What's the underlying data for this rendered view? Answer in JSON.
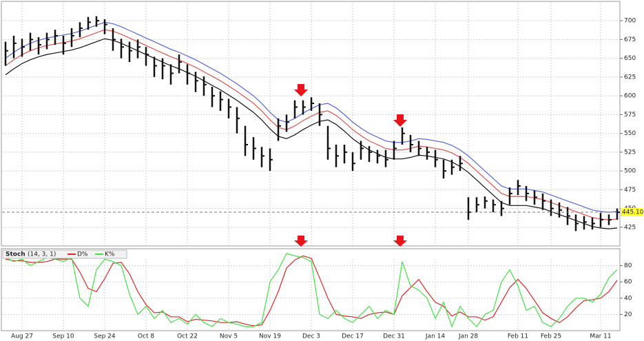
{
  "chart_data": [
    {
      "type": "ohlc",
      "high": [
        672,
        680,
        676,
        684,
        678,
        684,
        688,
        680,
        690,
        698,
        705,
        706,
        702,
        690,
        676,
        672,
        675,
        665,
        652,
        650,
        642,
        655,
        642,
        632,
        626,
        612,
        606,
        596,
        585,
        560,
        545,
        532,
        530,
        570,
        575,
        594,
        594,
        598,
        590,
        560,
        535,
        535,
        525,
        540,
        533,
        528,
        528,
        540,
        558,
        548,
        540,
        532,
        528,
        515,
        515,
        520,
        465,
        465,
        466,
        462,
        460,
        478,
        488,
        480,
        474,
        470,
        462,
        458,
        452,
        442,
        440,
        438,
        444,
        442,
        450
      ],
      "low": [
        640,
        650,
        652,
        660,
        655,
        662,
        668,
        655,
        665,
        678,
        688,
        692,
        682,
        660,
        650,
        645,
        650,
        640,
        625,
        622,
        615,
        630,
        615,
        605,
        600,
        585,
        580,
        570,
        550,
        520,
        515,
        505,
        500,
        540,
        552,
        570,
        575,
        580,
        560,
        515,
        505,
        510,
        500,
        515,
        512,
        510,
        505,
        515,
        535,
        525,
        520,
        515,
        505,
        490,
        495,
        500,
        435,
        445,
        450,
        445,
        440,
        455,
        468,
        460,
        455,
        448,
        440,
        438,
        428,
        420,
        422,
        422,
        425,
        428,
        435
      ],
      "close": [
        660,
        670,
        665,
        675,
        668,
        675,
        680,
        670,
        680,
        690,
        698,
        700,
        695,
        675,
        665,
        660,
        665,
        655,
        640,
        640,
        630,
        645,
        630,
        620,
        615,
        600,
        595,
        585,
        570,
        535,
        530,
        520,
        515,
        560,
        565,
        585,
        585,
        590,
        575,
        530,
        520,
        525,
        510,
        530,
        525,
        520,
        515,
        530,
        550,
        535,
        530,
        525,
        515,
        500,
        505,
        510,
        445,
        455,
        460,
        455,
        450,
        470,
        480,
        470,
        465,
        460,
        450,
        448,
        440,
        430,
        432,
        430,
        435,
        435,
        445
      ],
      "color": "#111111",
      "lines": [
        {
          "color": "#5566dd",
          "values": [
            650,
            658,
            665,
            670,
            674,
            677,
            679,
            681,
            683,
            686,
            690,
            694,
            698,
            696,
            692,
            687,
            682,
            677,
            672,
            667,
            662,
            658,
            653,
            648,
            642,
            636,
            630,
            623,
            616,
            608,
            600,
            590,
            578,
            568,
            565,
            570,
            577,
            583,
            588,
            590,
            584,
            575,
            565,
            557,
            550,
            545,
            540,
            538,
            538,
            540,
            543,
            542,
            540,
            538,
            534,
            528,
            520,
            510,
            500,
            490,
            480,
            476,
            476,
            476,
            474,
            472,
            468,
            464,
            460,
            456,
            452,
            448,
            446,
            445,
            446
          ]
        },
        {
          "color": "#e05050",
          "values": [
            640,
            648,
            655,
            660,
            664,
            667,
            669,
            671,
            673,
            676,
            680,
            684,
            688,
            686,
            682,
            677,
            672,
            667,
            662,
            657,
            652,
            648,
            643,
            638,
            632,
            626,
            620,
            613,
            606,
            598,
            590,
            580,
            568,
            558,
            555,
            560,
            567,
            573,
            578,
            580,
            574,
            565,
            555,
            547,
            540,
            535,
            530,
            528,
            528,
            530,
            533,
            532,
            530,
            528,
            524,
            518,
            510,
            500,
            490,
            480,
            470,
            466,
            466,
            466,
            464,
            462,
            458,
            454,
            450,
            446,
            442,
            438,
            436,
            435,
            436
          ]
        },
        {
          "color": "#111111",
          "values": [
            628,
            636,
            643,
            648,
            652,
            655,
            657,
            659,
            661,
            664,
            668,
            672,
            676,
            674,
            670,
            665,
            660,
            655,
            650,
            645,
            640,
            636,
            631,
            626,
            620,
            614,
            608,
            601,
            594,
            586,
            578,
            568,
            556,
            546,
            543,
            548,
            555,
            561,
            566,
            568,
            562,
            553,
            543,
            535,
            528,
            523,
            518,
            516,
            516,
            518,
            521,
            520,
            518,
            516,
            512,
            506,
            498,
            488,
            478,
            468,
            458,
            454,
            454,
            454,
            452,
            450,
            446,
            442,
            438,
            434,
            430,
            426,
            424,
            423,
            424
          ]
        }
      ],
      "last_price": 445.1,
      "last_price_label": "445.10",
      "ylim": [
        402,
        723
      ],
      "yticks": [
        425,
        450,
        475,
        500,
        525,
        550,
        575,
        600,
        625,
        650,
        675,
        700
      ],
      "grid": true
    },
    {
      "type": "line",
      "title": "Stoch",
      "subtitle": "(14, 3, 1)",
      "categories": [
        null,
        null,
        "Aug 27",
        null,
        null,
        null,
        null,
        "Sep 10",
        null,
        null,
        null,
        null,
        "Sep 24",
        null,
        null,
        null,
        null,
        "Oct 8",
        null,
        null,
        null,
        null,
        "Oct 22",
        null,
        null,
        null,
        null,
        "Nov 5",
        null,
        null,
        null,
        null,
        "Nov 19",
        null,
        null,
        null,
        null,
        "Dec 3",
        null,
        null,
        null,
        null,
        "Dec 17",
        null,
        null,
        null,
        null,
        "Dec 31",
        null,
        null,
        null,
        null,
        "Jan 14",
        null,
        null,
        null,
        "Jan 28",
        null,
        null,
        null,
        null,
        null,
        "Feb 11",
        null,
        null,
        null,
        "Feb 25",
        null,
        null,
        null,
        null,
        null,
        "Mar 11",
        null,
        null
      ],
      "series": [
        {
          "name": "D%",
          "color": "#d62728",
          "values": [
            88,
            86,
            86,
            84,
            84,
            85,
            88,
            88,
            88,
            72,
            52,
            48,
            64,
            83,
            84,
            70,
            48,
            32,
            22,
            23,
            17,
            17,
            11,
            14,
            13,
            12,
            10,
            10,
            11,
            8,
            6,
            7,
            25,
            48,
            77,
            87,
            92,
            89,
            65,
            40,
            20,
            18,
            17,
            15,
            20,
            22,
            23,
            20,
            43,
            53,
            63,
            48,
            35,
            30,
            18,
            23,
            17,
            17,
            13,
            17,
            35,
            53,
            63,
            52,
            37,
            22,
            15,
            10,
            17,
            28,
            37,
            38,
            40,
            48,
            62
          ]
        },
        {
          "name": "K%",
          "color": "#44dd44",
          "values": [
            90,
            85,
            88,
            80,
            85,
            90,
            88,
            85,
            90,
            40,
            30,
            75,
            88,
            85,
            80,
            45,
            20,
            30,
            15,
            25,
            10,
            15,
            8,
            20,
            10,
            5,
            15,
            10,
            8,
            5,
            5,
            10,
            60,
            75,
            95,
            92,
            90,
            85,
            20,
            15,
            25,
            15,
            10,
            20,
            30,
            15,
            25,
            20,
            85,
            55,
            50,
            40,
            15,
            35,
            5,
            30,
            15,
            5,
            20,
            25,
            60,
            75,
            55,
            25,
            30,
            10,
            5,
            15,
            30,
            40,
            40,
            35,
            45,
            65,
            75
          ]
        }
      ],
      "ylim": [
        0,
        100
      ],
      "yticks": [
        20,
        40,
        60,
        80
      ],
      "grid": true
    }
  ]
}
